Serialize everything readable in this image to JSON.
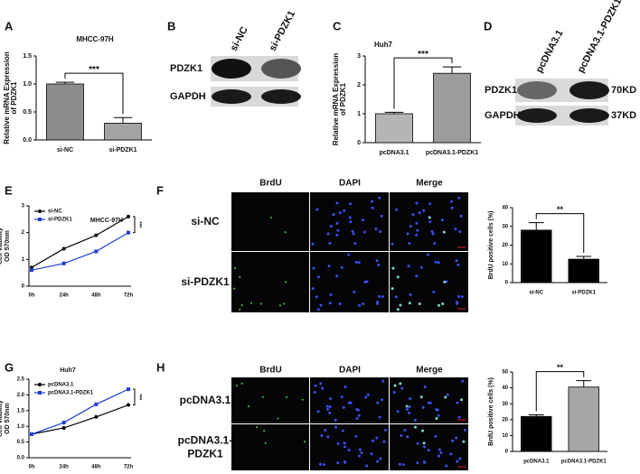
{
  "chart_data": [
    {
      "type": "bar",
      "panel": "A",
      "title": "MHCC-97H",
      "ylabel": [
        "Relative mRNA Expression",
        "of PDZK1"
      ],
      "categories": [
        "si-NC",
        "si-PDZK1"
      ],
      "values": [
        1.0,
        0.3
      ],
      "errors": [
        0.03,
        0.1
      ],
      "colors": [
        "#8c8c8c",
        "#a3a3a3"
      ],
      "ylim": [
        0,
        1.5
      ],
      "yticks": [
        {
          "value": 0,
          "label": "0.0"
        },
        {
          "value": 0.5,
          "label": "0.5"
        },
        {
          "value": 1.0,
          "label": "1.0"
        },
        {
          "value": 1.5,
          "label": "1.5"
        }
      ],
      "annotation": "***"
    },
    {
      "type": "bar",
      "panel": "C",
      "title": "Huh7",
      "ylabel": [
        "Relative  mRNA Expression",
        "of PDZK1"
      ],
      "categories": [
        "pcDNA3.1",
        "pcDNA3.1-PDZK1"
      ],
      "values": [
        1.0,
        2.4
      ],
      "errors": [
        0.05,
        0.22
      ],
      "colors": [
        "#b5b5b5",
        "#9c9c9c"
      ],
      "ylim": [
        0,
        3
      ],
      "yticks": [
        0,
        1,
        2,
        3
      ],
      "annotation": "***"
    },
    {
      "type": "line",
      "panel": "E",
      "title": "MHCC-97H",
      "ylabel": [
        "Cell viability",
        "OD 570nm"
      ],
      "categories": [
        "0h",
        "24h",
        "48h",
        "72h"
      ],
      "series": [
        {
          "name": "si-NC",
          "color": "#000000",
          "values": [
            0.7,
            1.4,
            1.9,
            2.6
          ]
        },
        {
          "name": "si-PDZK1",
          "color": "#1f3fd6",
          "values": [
            0.6,
            0.85,
            1.3,
            2.0
          ]
        }
      ],
      "ylim": [
        0,
        3
      ],
      "yticks": [
        0,
        1,
        2,
        3
      ],
      "legend": "upper left",
      "annotation": "***"
    },
    {
      "type": "bar",
      "ylabel": [
        "BrdU positive cells (%)"
      ],
      "categories": [
        "si-NC",
        "si-PDZK1"
      ],
      "values": [
        28,
        12.5
      ],
      "errors": [
        4,
        1.5
      ],
      "colors": [
        "#000000",
        "#000000"
      ],
      "ylim": [
        0,
        40
      ],
      "yticks": [
        0,
        10,
        20,
        30,
        40
      ],
      "annotation": "**"
    },
    {
      "type": "line",
      "panel": "G",
      "title": "Huh7",
      "ylabel": [
        "Cell viability",
        "OD 570nm"
      ],
      "categories": [
        "0h",
        "24h",
        "48h",
        "72h"
      ],
      "series": [
        {
          "name": "pcDNA3.1",
          "color": "#000000",
          "values": [
            0.75,
            0.95,
            1.3,
            1.68
          ]
        },
        {
          "name": "pcDNA3.1-PDZK1",
          "color": "#1f3fd6",
          "values": [
            0.75,
            1.12,
            1.7,
            2.18
          ]
        }
      ],
      "ylim": [
        0,
        2.5
      ],
      "yticks": [
        {
          "value": 0,
          "label": "0.0"
        },
        {
          "value": 0.5,
          "label": "0.5"
        },
        {
          "value": 1.0,
          "label": "1.0"
        },
        {
          "value": 1.5,
          "label": "1.5"
        },
        {
          "value": 2.0,
          "label": "2.0"
        },
        {
          "value": 2.5,
          "label": "2.5"
        }
      ],
      "legend": "upper left",
      "annotation": "***"
    },
    {
      "type": "bar",
      "ylabel": [
        "BrdU positive cells (%)"
      ],
      "categories": [
        "pcDNA3.1",
        "pcDNA3.1-PDZK1"
      ],
      "values": [
        22,
        40.5
      ],
      "errors": [
        1,
        4
      ],
      "colors": [
        "#000000",
        "#a6a6a6"
      ],
      "ylim": [
        0,
        50
      ],
      "yticks": [
        0,
        10,
        20,
        30,
        40,
        50
      ],
      "annotation": "**"
    }
  ],
  "blots": [
    {
      "panel": "B",
      "lanes": [
        "si-NC",
        "si-PDZK1"
      ],
      "rows": [
        "PDZK1",
        "GAPDH"
      ]
    },
    {
      "panel": "D",
      "lanes": [
        "pcDNA3.1",
        "pcDNA3.1-PDZK1"
      ],
      "rows": [
        "PDZK1",
        "GAPDH"
      ],
      "sizes": [
        "70KD",
        "37KD"
      ]
    }
  ],
  "micrographs": [
    {
      "panel": "F",
      "columns": [
        "BrdU",
        "DAPI",
        "Merge"
      ],
      "rows": [
        [
          "si-NC"
        ],
        [
          "si-PDZK1"
        ]
      ]
    },
    {
      "panel": "H",
      "columns": [
        "BrdU",
        "DAPI",
        "Merge"
      ],
      "rows": [
        [
          "pcDNA3.1"
        ],
        [
          "pcDNA3.1-",
          "PDZK1"
        ]
      ]
    }
  ]
}
